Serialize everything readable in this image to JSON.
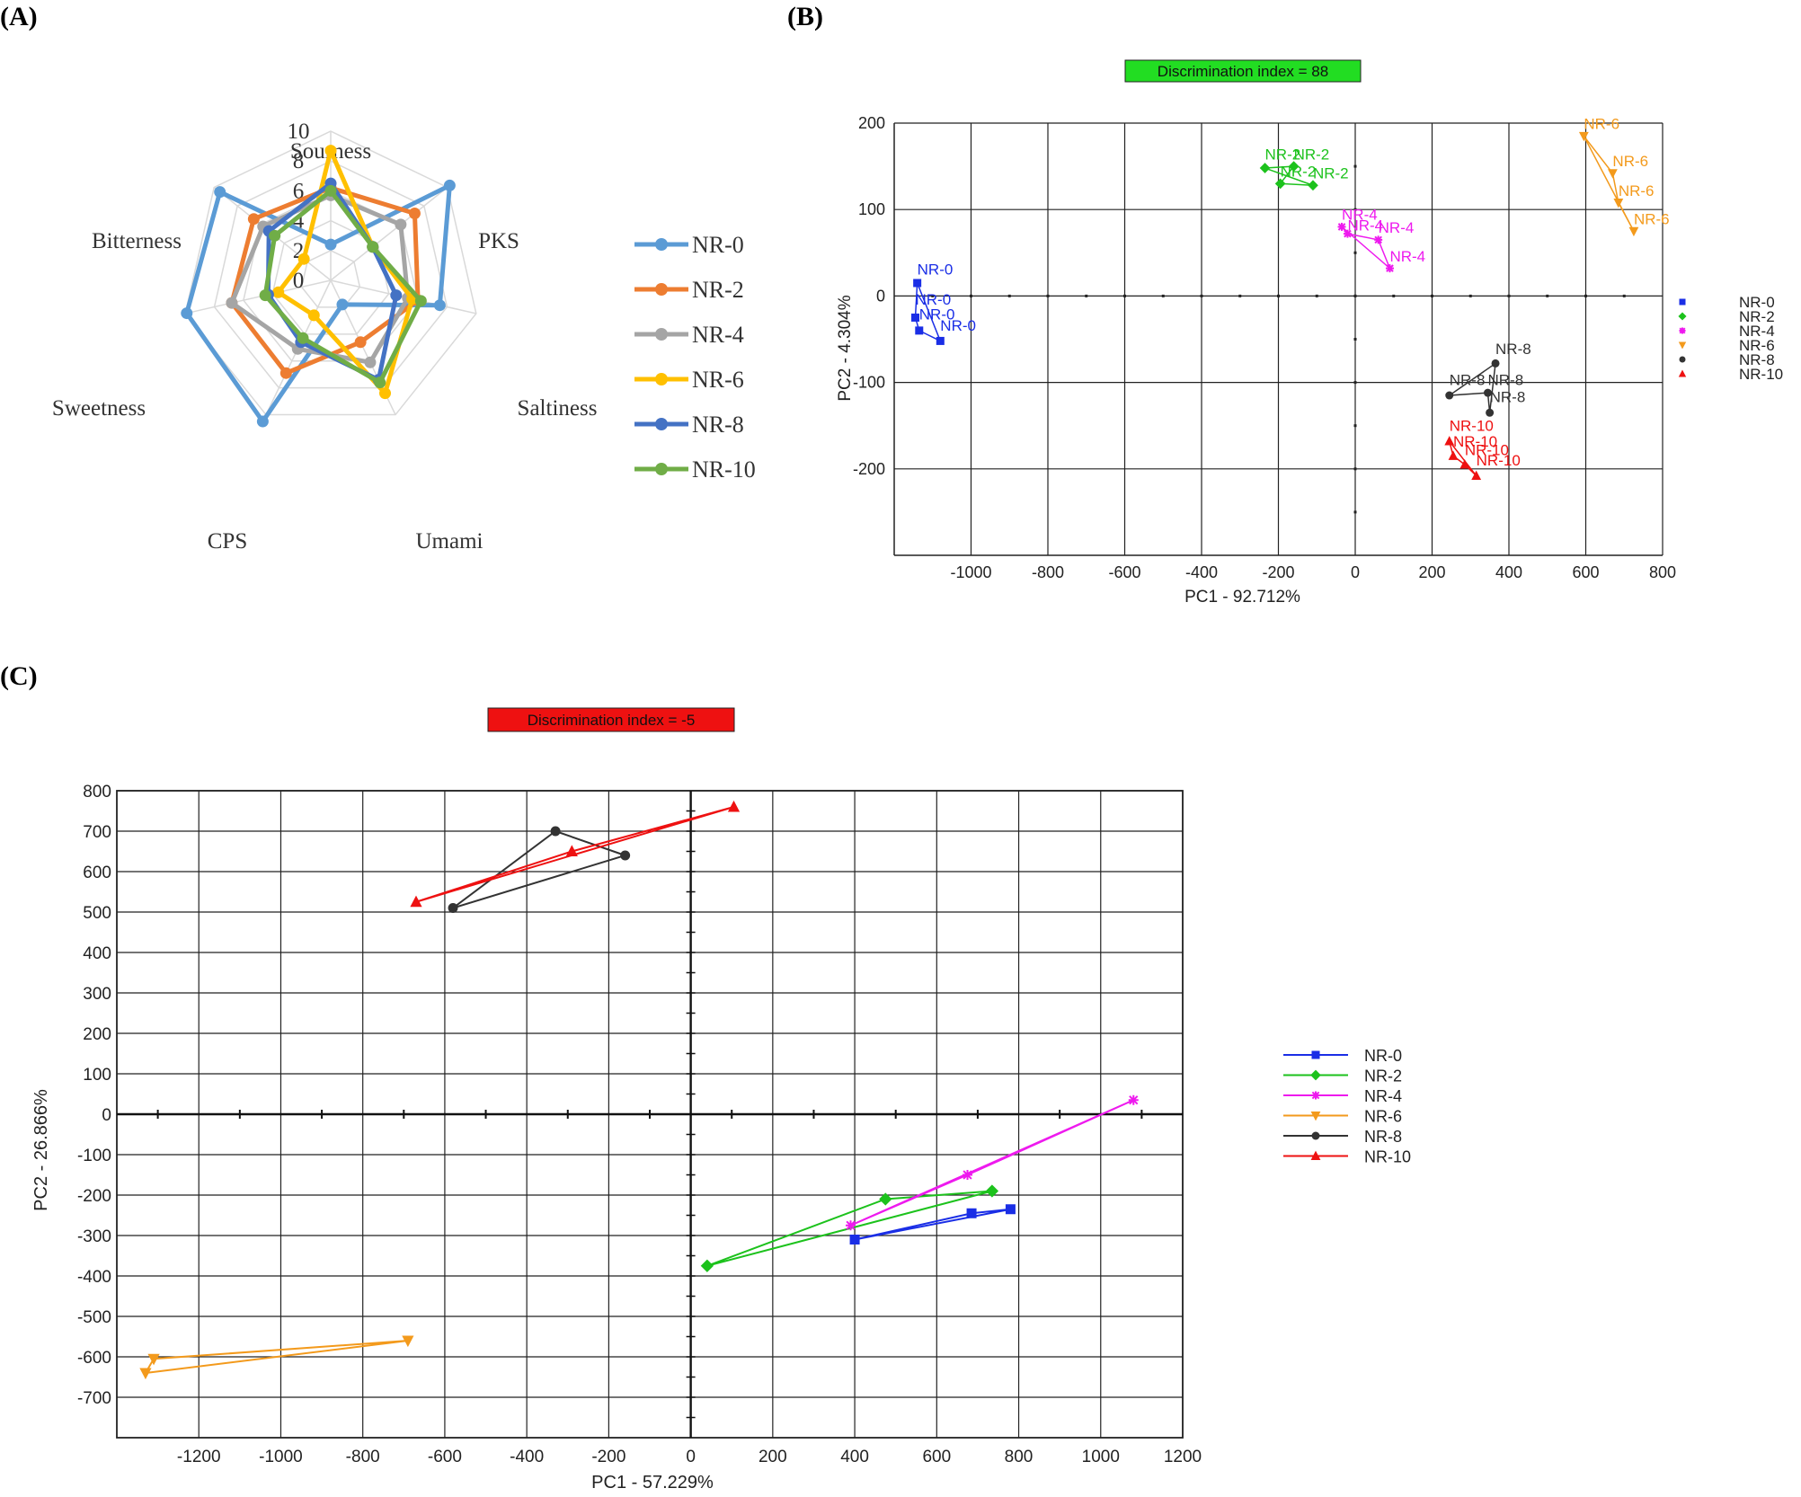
{
  "panels": {
    "a": "(A)",
    "b": "(B)",
    "c": "(C)"
  },
  "colors": {
    "NR-0": "#5b9bd5",
    "NR-2": "#ed7d31",
    "NR-4": "#a5a5a5",
    "NR-6": "#ffc000",
    "NR-8": "#4472c4",
    "NR-10": "#70ad47",
    "pca_NR-0": "#1a2ee6",
    "pca_NR-2": "#1cc21c",
    "pca_NR-4": "#ee1aee",
    "pca_NR-6": "#f39a1c",
    "pca_NR-8": "#333333",
    "pca_NR-10": "#ee1111",
    "di_positive": "#22dd22",
    "di_negative": "#ee1111"
  },
  "chart_data": [
    {
      "type": "radar",
      "panel": "(A)",
      "axes": [
        "Sourness",
        "PKS",
        "Saltiness",
        "Umami",
        "CPS",
        "Sweetness",
        "Bitterness"
      ],
      "axis_ticks": [
        "0",
        "2",
        "4",
        "6",
        "8",
        "10"
      ],
      "range": [
        0,
        10
      ],
      "series": [
        {
          "name": "NR-0",
          "values": [
            2.4,
            10.2,
            7.5,
            1.8,
            10.5,
            9.9,
            9.5
          ]
        },
        {
          "name": "NR-2",
          "values": [
            6.2,
            7.2,
            6.0,
            4.6,
            6.9,
            6.8,
            6.6
          ]
        },
        {
          "name": "NR-4",
          "values": [
            5.7,
            6.0,
            5.3,
            6.1,
            5.1,
            6.8,
            5.8
          ]
        },
        {
          "name": "NR-6",
          "values": [
            8.7,
            3.6,
            5.6,
            8.4,
            2.6,
            3.6,
            2.3
          ]
        },
        {
          "name": "NR-8",
          "values": [
            6.5,
            3.6,
            4.5,
            7.4,
            4.6,
            4.3,
            5.3
          ]
        },
        {
          "name": "NR-10",
          "values": [
            6.0,
            3.6,
            6.2,
            7.6,
            4.3,
            4.5,
            4.8
          ]
        }
      ]
    },
    {
      "type": "scatter",
      "panel": "(B)",
      "title": "Discrimination index = 88",
      "xlabel": "PC1 - 92.712%",
      "ylabel": "PC2 - 4.304%",
      "xlim": [
        -1200,
        800
      ],
      "ylim": [
        -300,
        200
      ],
      "xticks": [
        "-1000",
        "-800",
        "-600",
        "-400",
        "-200",
        "0",
        "200",
        "400",
        "600",
        "800"
      ],
      "yticks": [
        "200",
        "100",
        "0",
        "-100",
        "-200"
      ],
      "series": [
        {
          "name": "NR-0",
          "marker": "square",
          "x": [
            -1140,
            -1145,
            -1135,
            -1080
          ],
          "y": [
            15,
            -25,
            -40,
            -52
          ]
        },
        {
          "name": "NR-2",
          "marker": "diamond",
          "x": [
            -235,
            -160,
            -195,
            -110
          ],
          "y": [
            148,
            150,
            130,
            128
          ]
        },
        {
          "name": "NR-4",
          "marker": "star",
          "x": [
            -35,
            -20,
            60,
            90
          ],
          "y": [
            80,
            72,
            65,
            32
          ]
        },
        {
          "name": "NR-6",
          "marker": "triangle-down",
          "x": [
            595,
            670,
            685,
            725
          ],
          "y": [
            185,
            142,
            108,
            75
          ]
        },
        {
          "name": "NR-8",
          "marker": "circle",
          "x": [
            365,
            245,
            345,
            350
          ],
          "y": [
            -78,
            -115,
            -112,
            -135
          ]
        },
        {
          "name": "NR-10",
          "marker": "triangle",
          "x": [
            245,
            255,
            285,
            315
          ],
          "y": [
            -168,
            -185,
            -195,
            -208
          ]
        }
      ],
      "point_labels": {
        "NR-0": [
          {
            "x": -1140,
            "y": 25,
            "text": "NR-0"
          },
          {
            "x": -1145,
            "y": -10,
            "text": "NR-0"
          },
          {
            "x": -1135,
            "y": -27,
            "text": "NR-0"
          },
          {
            "x": -1080,
            "y": -40,
            "text": "NR-0"
          }
        ],
        "NR-2": [
          {
            "x": -235,
            "y": 158,
            "text": "NR-2"
          },
          {
            "x": -160,
            "y": 158,
            "text": "NR-2"
          },
          {
            "x": -195,
            "y": 138,
            "text": "NR-2"
          },
          {
            "x": -110,
            "y": 136,
            "text": "NR-2"
          }
        ],
        "NR-4": [
          {
            "x": -35,
            "y": 88,
            "text": "NR-4"
          },
          {
            "x": -20,
            "y": 76,
            "text": "NR-4"
          },
          {
            "x": 60,
            "y": 73,
            "text": "NR-4"
          },
          {
            "x": 90,
            "y": 40,
            "text": "NR-4"
          }
        ],
        "NR-6": [
          {
            "x": 595,
            "y": 193,
            "text": "NR-6"
          },
          {
            "x": 670,
            "y": 150,
            "text": "NR-6"
          },
          {
            "x": 685,
            "y": 116,
            "text": "NR-6"
          },
          {
            "x": 725,
            "y": 83,
            "text": "NR-6"
          }
        ],
        "NR-8": [
          {
            "x": 365,
            "y": -67,
            "text": "NR-8"
          },
          {
            "x": 245,
            "y": -103,
            "text": "NR-8"
          },
          {
            "x": 345,
            "y": -103,
            "text": "NR-8"
          },
          {
            "x": 350,
            "y": -123,
            "text": "NR-8"
          }
        ],
        "NR-10": [
          {
            "x": 245,
            "y": -156,
            "text": "NR-10"
          },
          {
            "x": 255,
            "y": -174,
            "text": "NR-10"
          },
          {
            "x": 285,
            "y": -184,
            "text": "NR-10"
          },
          {
            "x": 315,
            "y": -196,
            "text": "NR-10"
          }
        ]
      },
      "legend": [
        "NR-0",
        "NR-2",
        "NR-4",
        "NR-6",
        "NR-8",
        "NR-10"
      ]
    },
    {
      "type": "scatter",
      "panel": "(C)",
      "title": "Discrimination index = -5",
      "xlabel": "PC1 - 57.229%",
      "ylabel": "PC2 - 26.866%",
      "xlim": [
        -1400,
        1200
      ],
      "ylim": [
        -800,
        800
      ],
      "xticks": [
        "-1200",
        "-1000",
        "-800",
        "-600",
        "-400",
        "-200",
        "0",
        "200",
        "400",
        "600",
        "800",
        "1000",
        "1200"
      ],
      "yticks": [
        "800",
        "700",
        "600",
        "500",
        "400",
        "300",
        "200",
        "100",
        "0",
        "-100",
        "-200",
        "-300",
        "-400",
        "-500",
        "-600",
        "-700"
      ],
      "series": [
        {
          "name": "NR-0",
          "marker": "square",
          "x": [
            400,
            685,
            780
          ],
          "y": [
            -310,
            -245,
            -235
          ]
        },
        {
          "name": "NR-2",
          "marker": "diamond",
          "x": [
            40,
            475,
            735
          ],
          "y": [
            -375,
            -210,
            -190
          ]
        },
        {
          "name": "NR-4",
          "marker": "star",
          "x": [
            390,
            675,
            1080
          ],
          "y": [
            -275,
            -150,
            35
          ]
        },
        {
          "name": "NR-6",
          "marker": "triangle-down",
          "x": [
            -1310,
            -1330,
            -690
          ],
          "y": [
            -605,
            -640,
            -560
          ]
        },
        {
          "name": "NR-8",
          "marker": "circle",
          "x": [
            -580,
            -330,
            -160
          ],
          "y": [
            510,
            700,
            640
          ]
        },
        {
          "name": "NR-10",
          "marker": "triangle",
          "x": [
            -670,
            -290,
            105
          ],
          "y": [
            525,
            650,
            760
          ]
        }
      ],
      "legend": [
        "NR-0",
        "NR-2",
        "NR-4",
        "NR-6",
        "NR-8",
        "NR-10"
      ]
    }
  ]
}
